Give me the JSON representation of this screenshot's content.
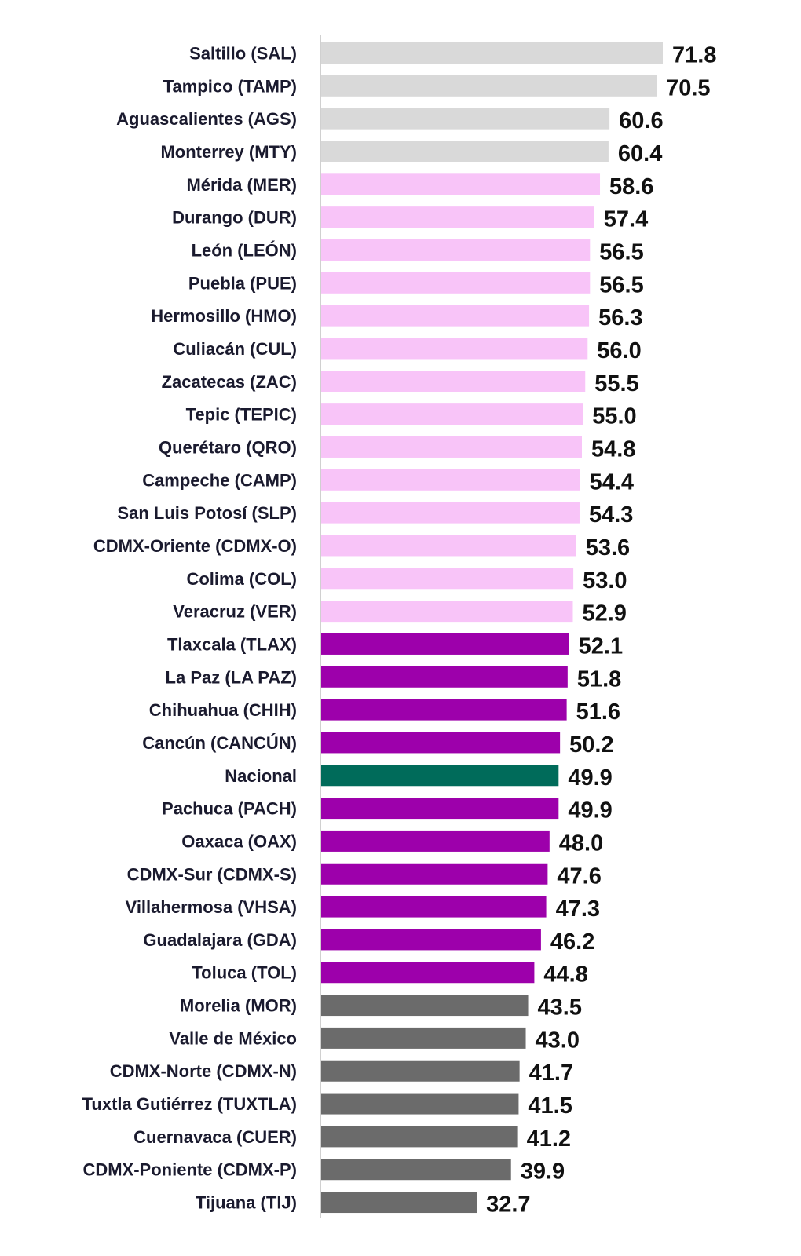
{
  "chart_data": {
    "type": "bar",
    "orientation": "horizontal",
    "xlim": [
      0,
      71.8
    ],
    "grid": false,
    "legend": "none",
    "colors": {
      "light_gray": "#d9d9d9",
      "pink": "#f8c4f8",
      "purple": "#9d00ab",
      "teal": "#006b5a",
      "dark_gray": "#6b6b6b"
    },
    "categories": [
      "Saltillo (SAL)",
      "Tampico (TAMP)",
      "Aguascalientes (AGS)",
      "Monterrey (MTY)",
      "Mérida (MER)",
      "Durango (DUR)",
      "León (LEÓN)",
      "Puebla (PUE)",
      "Hermosillo (HMO)",
      "Culiacán (CUL)",
      "Zacatecas (ZAC)",
      "Tepic (TEPIC)",
      "Querétaro (QRO)",
      "Campeche (CAMP)",
      "San Luis Potosí (SLP)",
      "CDMX-Oriente (CDMX-O)",
      "Colima (COL)",
      "Veracruz (VER)",
      "Tlaxcala (TLAX)",
      "La Paz (LA PAZ)",
      "Chihuahua (CHIH)",
      "Cancún (CANCÚN)",
      "Nacional",
      "Pachuca (PACH)",
      "Oaxaca (OAX)",
      "CDMX-Sur (CDMX-S)",
      "Villahermosa (VHSA)",
      "Guadalajara (GDA)",
      "Toluca (TOL)",
      "Morelia (MOR)",
      "Valle de México",
      "CDMX-Norte (CDMX-N)",
      "Tuxtla Gutiérrez (TUXTLA)",
      "Cuernavaca (CUER)",
      "CDMX-Poniente (CDMX-P)",
      "Tijuana (TIJ)"
    ],
    "values": [
      71.8,
      70.5,
      60.6,
      60.4,
      58.6,
      57.4,
      56.5,
      56.5,
      56.3,
      56.0,
      55.5,
      55.0,
      54.8,
      54.4,
      54.3,
      53.6,
      53.0,
      52.9,
      52.1,
      51.8,
      51.6,
      50.2,
      49.9,
      49.9,
      48.0,
      47.6,
      47.3,
      46.2,
      44.8,
      43.5,
      43.0,
      41.7,
      41.5,
      41.2,
      39.9,
      32.7
    ],
    "value_labels": [
      "71.8",
      "70.5",
      "60.6",
      "60.4",
      "58.6",
      "57.4",
      "56.5",
      "56.5",
      "56.3",
      "56.0",
      "55.5",
      "55.0",
      "54.8",
      "54.4",
      "54.3",
      "53.6",
      "53.0",
      "52.9",
      "52.1",
      "51.8",
      "51.6",
      "50.2",
      "49.9",
      "49.9",
      "48.0",
      "47.6",
      "47.3",
      "46.2",
      "44.8",
      "43.5",
      "43.0",
      "41.7",
      "41.5",
      "41.2",
      "39.9",
      "32.7"
    ],
    "bar_color_groups": [
      "light_gray",
      "light_gray",
      "light_gray",
      "light_gray",
      "pink",
      "pink",
      "pink",
      "pink",
      "pink",
      "pink",
      "pink",
      "pink",
      "pink",
      "pink",
      "pink",
      "pink",
      "pink",
      "pink",
      "purple",
      "purple",
      "purple",
      "purple",
      "teal",
      "purple",
      "purple",
      "purple",
      "purple",
      "purple",
      "purple",
      "dark_gray",
      "dark_gray",
      "dark_gray",
      "dark_gray",
      "dark_gray",
      "dark_gray",
      "dark_gray"
    ]
  }
}
